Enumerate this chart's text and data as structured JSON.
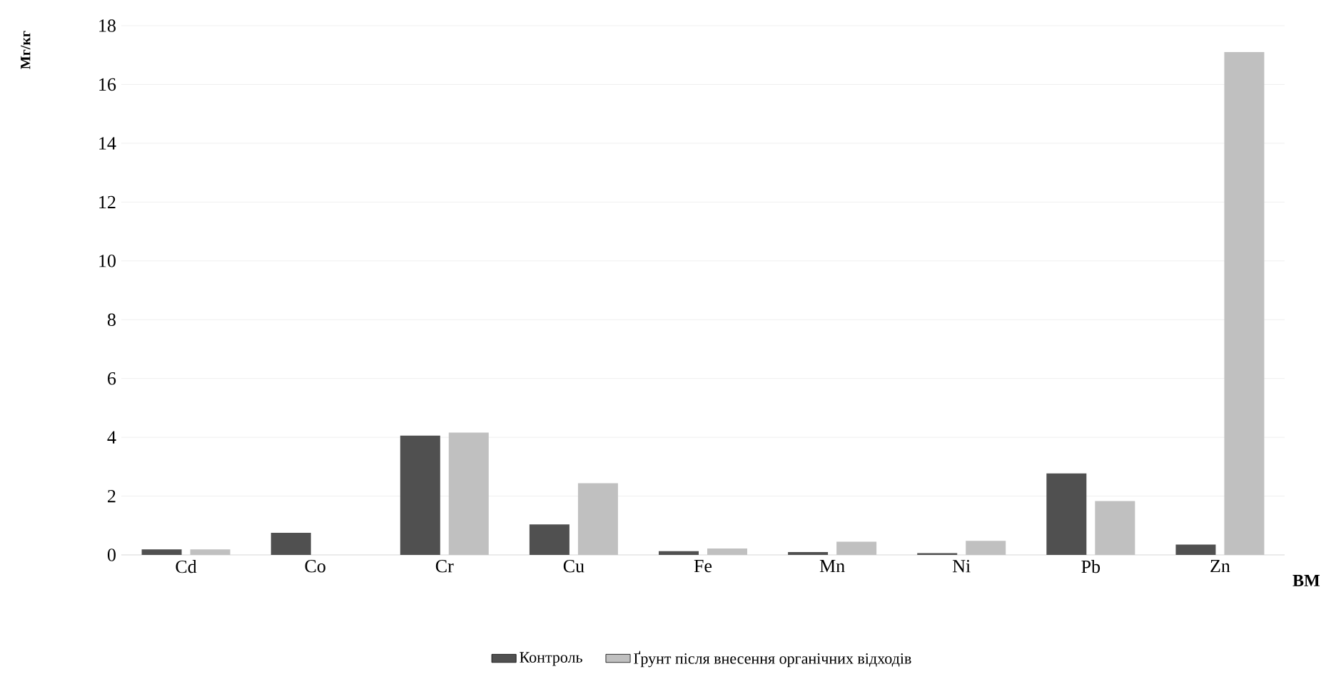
{
  "chart_data": {
    "type": "bar",
    "xlabel": "ВМ",
    "ylabel": "Мг/кг",
    "categories": [
      "Cd",
      "Co",
      "Cr",
      "Cu",
      "Fe",
      "Mn",
      "Ni",
      "Pb",
      "Zn"
    ],
    "series": [
      {
        "name": "Контроль",
        "color": "#505050",
        "values": [
          0.19,
          0.75,
          4.06,
          1.04,
          0.13,
          0.1,
          0.06,
          2.77,
          0.35
        ]
      },
      {
        "name": "Ґрунт після внесення органічних відходів",
        "color": "#c0c0c0",
        "values": [
          0.19,
          null,
          4.16,
          2.44,
          0.22,
          0.45,
          0.48,
          1.83,
          17.1
        ]
      }
    ],
    "ylim": [
      0,
      18
    ],
    "yticks": [
      0,
      2,
      4,
      6,
      8,
      10,
      12,
      14,
      16,
      18
    ],
    "grid": "y",
    "legend": "bottom"
  }
}
